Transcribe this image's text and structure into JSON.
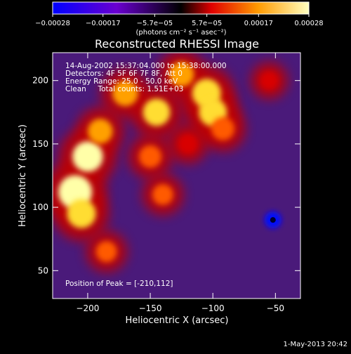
{
  "chart_data": {
    "type": "heatmap",
    "title": "Reconstructed RHESSI Image",
    "xlabel": "Heliocentric X (arcsec)",
    "ylabel": "Heliocentric Y (arcsec)",
    "xlim": [
      -228,
      -30
    ],
    "ylim": [
      28,
      222
    ],
    "x_ticks": [
      -200,
      -150,
      -100,
      -50
    ],
    "y_ticks": [
      50,
      100,
      150,
      200
    ],
    "x_tick_labels": [
      "−200",
      "−150",
      "−100",
      "−50"
    ],
    "y_tick_labels": [
      "50",
      "100",
      "150",
      "200"
    ],
    "colorbar": {
      "range": [
        -0.00028,
        0.00028
      ],
      "ticks": [
        -0.00028,
        -0.00017,
        -5.7e-05,
        5.7e-05,
        0.00017,
        0.00028
      ],
      "tick_labels": [
        "−0.00028",
        "−0.00017",
        "−5.7e−05",
        "5.7e−05",
        "0.00017",
        "0.00028"
      ],
      "unit_label": "(photons cm⁻² s⁻¹ asec⁻²)",
      "colormap": [
        "#0000ff",
        "#6a00d0",
        "#ff0000",
        "#ffaa00",
        "#ffffa0"
      ]
    },
    "annotations": {
      "time_range": "14-Aug-2002 15:37:04.000 to 15:38:00.000",
      "detectors": "Detectors: 4F 5F 6F 7F 8F, Att 0",
      "energy_range": "Energy Range: 25.0 - 50.0 keV",
      "clean_counts": "Clean     Total counts: 1.51E+03",
      "peak_position": "Position of Peak = [-210,112]"
    },
    "sources": [
      {
        "x": -210,
        "y": 112,
        "value": 0.00028
      },
      {
        "x": -200,
        "y": 140,
        "value": 0.00024
      },
      {
        "x": -205,
        "y": 95,
        "value": 0.00022
      },
      {
        "x": -190,
        "y": 160,
        "value": 0.00017
      },
      {
        "x": -170,
        "y": 190,
        "value": 0.00018
      },
      {
        "x": -145,
        "y": 175,
        "value": 0.0002
      },
      {
        "x": -125,
        "y": 205,
        "value": 0.00017
      },
      {
        "x": -105,
        "y": 190,
        "value": 0.00022
      },
      {
        "x": -100,
        "y": 175,
        "value": 0.00021
      },
      {
        "x": -92,
        "y": 162,
        "value": 0.00015
      },
      {
        "x": -150,
        "y": 140,
        "value": 0.00014
      },
      {
        "x": -140,
        "y": 110,
        "value": 0.00012
      },
      {
        "x": -185,
        "y": 65,
        "value": 0.00012
      },
      {
        "x": -120,
        "y": 150,
        "value": 0.00011
      },
      {
        "x": -55,
        "y": 200,
        "value": 9e-05
      },
      {
        "x": -52,
        "y": 90,
        "value": -0.00028
      }
    ],
    "footer_date": "1-May-2013 20:42"
  }
}
